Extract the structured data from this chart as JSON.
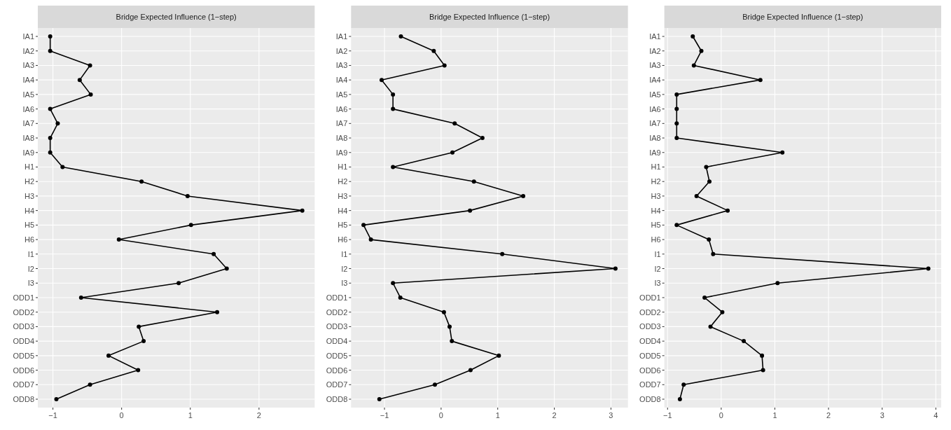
{
  "chart_data": [
    {
      "type": "line",
      "orientation": "horizontal",
      "title": "Bridge Expected Influence (1−step)",
      "grid": true,
      "marker": "circle",
      "line_style": "solid",
      "categories": [
        "IA1",
        "IA2",
        "IA3",
        "IA4",
        "IA5",
        "IA6",
        "IA7",
        "IA8",
        "IA9",
        "H1",
        "H2",
        "H3",
        "H4",
        "H5",
        "H6",
        "I1",
        "I2",
        "I3",
        "ODD1",
        "ODD2",
        "ODD3",
        "ODD4",
        "ODD5",
        "ODD6",
        "ODD7",
        "ODD8"
      ],
      "xlim": [
        -1.22,
        2.81
      ],
      "xticks": [
        -1,
        0,
        1,
        2
      ],
      "series": [
        {
          "color": "#000000",
          "values": [
            -1.04,
            -1.04,
            -0.46,
            -0.61,
            -0.45,
            -1.04,
            -0.93,
            -1.04,
            -1.04,
            -0.86,
            0.29,
            0.96,
            2.63,
            1.01,
            -0.04,
            1.34,
            1.53,
            0.83,
            -0.59,
            1.39,
            0.25,
            0.32,
            -0.19,
            0.24,
            -0.46,
            -0.95
          ]
        }
      ]
    },
    {
      "type": "line",
      "orientation": "horizontal",
      "title": "Bridge Expected Influence (1−step)",
      "grid": true,
      "marker": "circle",
      "line_style": "solid",
      "categories": [
        "IA1",
        "IA2",
        "IA3",
        "IA4",
        "IA5",
        "IA6",
        "IA7",
        "IA8",
        "IA9",
        "H1",
        "H2",
        "H3",
        "H4",
        "H5",
        "H6",
        "I1",
        "I2",
        "I3",
        "ODD1",
        "ODD2",
        "ODD3",
        "ODD4",
        "ODD5",
        "ODD6",
        "ODD7",
        "ODD8"
      ],
      "xlim": [
        -1.59,
        3.3
      ],
      "xticks": [
        -1,
        0,
        1,
        2,
        3
      ],
      "series": [
        {
          "color": "#000000",
          "values": [
            -0.71,
            -0.13,
            0.06,
            -1.05,
            -0.85,
            -0.85,
            0.24,
            0.73,
            0.2,
            -0.85,
            0.58,
            1.45,
            0.51,
            -1.37,
            -1.24,
            1.08,
            3.08,
            -0.85,
            -0.72,
            0.05,
            0.15,
            0.19,
            1.02,
            0.52,
            -0.11,
            -1.09
          ]
        }
      ]
    },
    {
      "type": "line",
      "orientation": "horizontal",
      "title": "Bridge Expected Influence (1−step)",
      "grid": true,
      "marker": "circle",
      "line_style": "solid",
      "categories": [
        "IA1",
        "IA2",
        "IA3",
        "IA4",
        "IA5",
        "IA6",
        "IA7",
        "IA8",
        "IA9",
        "H1",
        "H2",
        "H3",
        "H4",
        "H5",
        "H6",
        "I1",
        "I2",
        "I3",
        "ODD1",
        "ODD2",
        "ODD3",
        "ODD4",
        "ODD5",
        "ODD6",
        "ODD7",
        "ODD8"
      ],
      "xlim": [
        -1.06,
        4.1
      ],
      "xticks": [
        -1,
        0,
        1,
        2,
        3,
        4
      ],
      "series": [
        {
          "color": "#000000",
          "values": [
            -0.53,
            -0.37,
            -0.51,
            0.73,
            -0.83,
            -0.83,
            -0.83,
            -0.83,
            1.14,
            -0.28,
            -0.22,
            -0.46,
            0.12,
            -0.83,
            -0.23,
            -0.15,
            3.86,
            1.05,
            -0.31,
            0.02,
            -0.2,
            0.42,
            0.76,
            0.78,
            -0.7,
            -0.77
          ]
        }
      ]
    }
  ]
}
